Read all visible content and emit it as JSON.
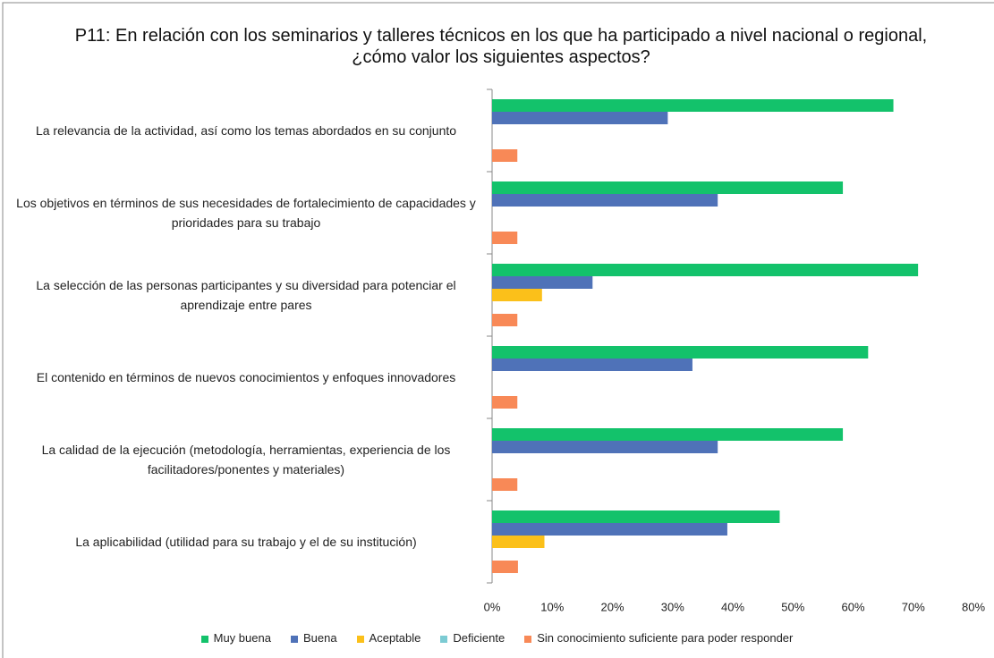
{
  "chart_data": {
    "type": "bar",
    "orientation": "horizontal",
    "title": "P11: En relación con los seminarios y talleres técnicos en los que ha participado a nivel nacional o regional, ¿cómo valor los siguientes aspectos?",
    "categories": [
      "La relevancia de la actividad, así como los temas abordados en su conjunto",
      "Los objetivos en términos de sus necesidades de fortalecimiento de capacidades y prioridades para su trabajo",
      "La selección de las personas participantes y su diversidad para potenciar el aprendizaje entre pares",
      "El contenido en términos de nuevos conocimientos y enfoques innovadores",
      "La calidad de la ejecución (metodología, herramientas, experiencia de los facilitadores/ponentes y materiales)",
      "La aplicabilidad (utilidad para su trabajo y el de su institución)"
    ],
    "series": [
      {
        "name": "Muy buena",
        "color": "#13c26b",
        "values": [
          66.7,
          58.3,
          70.8,
          62.5,
          58.3,
          47.8
        ]
      },
      {
        "name": "Buena",
        "color": "#4f72b8",
        "values": [
          29.2,
          37.5,
          16.7,
          33.3,
          37.5,
          39.1
        ]
      },
      {
        "name": "Aceptable",
        "color": "#fbc01a",
        "values": [
          0,
          0,
          8.3,
          0,
          0,
          8.7
        ]
      },
      {
        "name": "Deficiente",
        "color": "#7ccbd3",
        "values": [
          0,
          0,
          0,
          0,
          0,
          0
        ]
      },
      {
        "name": "Sin conocimiento suficiente para poder responder",
        "color": "#f88957",
        "values": [
          4.2,
          4.2,
          4.2,
          4.2,
          4.2,
          4.3
        ]
      }
    ],
    "xlim": [
      0,
      80
    ],
    "xticks": [
      {
        "value": 0,
        "label": "0%"
      },
      {
        "value": 10,
        "label": "10%"
      },
      {
        "value": 20,
        "label": "20%"
      },
      {
        "value": 30,
        "label": "30%"
      },
      {
        "value": 40,
        "label": "40%"
      },
      {
        "value": 50,
        "label": "50%"
      },
      {
        "value": 60,
        "label": "60%"
      },
      {
        "value": 70,
        "label": "70%"
      },
      {
        "value": 80,
        "label": "80%"
      }
    ],
    "grid": false,
    "legend": "bottom"
  }
}
